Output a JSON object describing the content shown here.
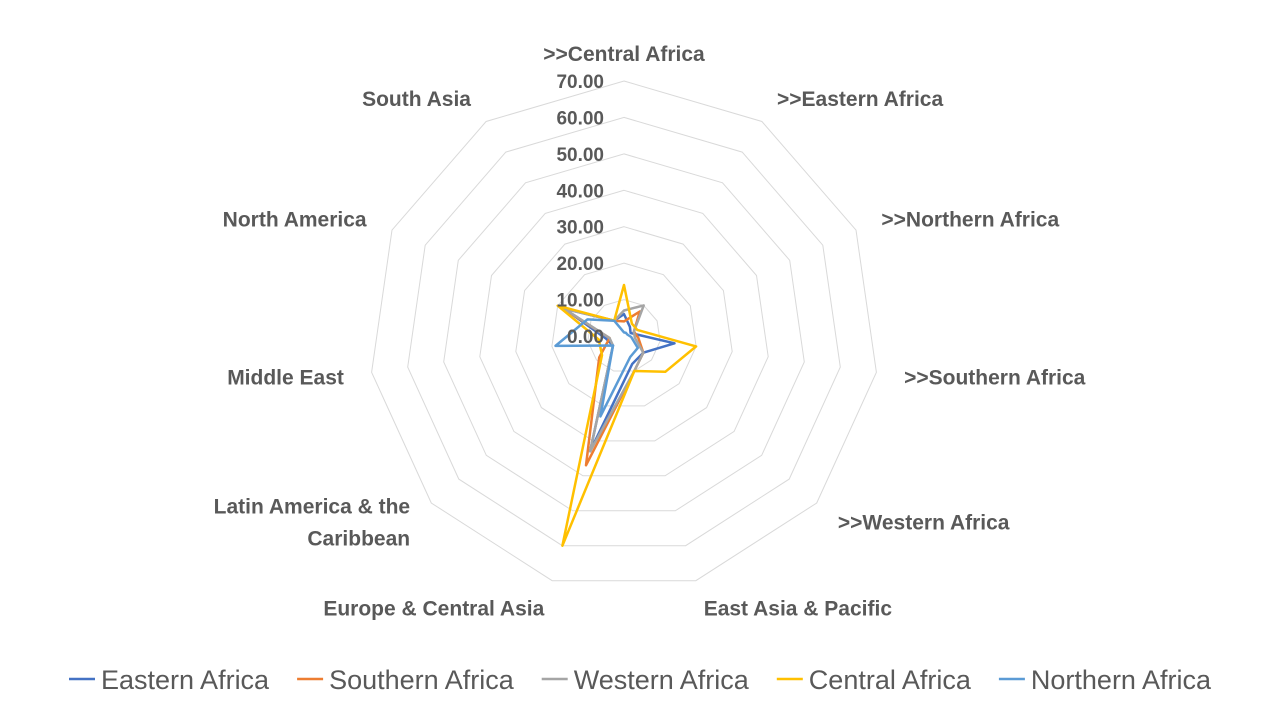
{
  "chart_data": {
    "type": "radar",
    "categories": [
      ">>Central Africa",
      ">>Eastern Africa",
      ">>Northern Africa",
      ">>Southern Africa",
      ">>Western  Africa",
      "East Asia & Pacific",
      "Europe & Central Asia",
      "Latin America & the Caribbean",
      "Middle East",
      "North America",
      "South Asia"
    ],
    "category_lines": [
      [
        ">>Central Africa"
      ],
      [
        ">>Eastern Africa"
      ],
      [
        ">>Northern Africa"
      ],
      [
        ">>Southern Africa"
      ],
      [
        ">>Western  Africa"
      ],
      [
        "East Asia & Pacific"
      ],
      [
        "Europe & Central Asia"
      ],
      [
        "Latin America & the",
        "Caribbean"
      ],
      [
        "Middle East"
      ],
      [
        "North America"
      ],
      [
        "South Asia"
      ]
    ],
    "rlim": [
      0,
      70
    ],
    "ticks": [
      "0.00",
      "10.00",
      "20.00",
      "30.00",
      "40.00",
      "50.00",
      "60.00",
      "70.00"
    ],
    "series": [
      {
        "name": "Eastern Africa",
        "color": "#4472C4",
        "values": [
          6,
          3,
          2,
          14,
          7,
          8,
          33,
          4,
          5,
          18,
          5
        ]
      },
      {
        "name": "Southern Africa",
        "color": "#ED7D31",
        "values": [
          4,
          8,
          3,
          4,
          7,
          10,
          37,
          9,
          4,
          19,
          5
        ]
      },
      {
        "name": "Western  Africa",
        "color": "#A5A5A5",
        "values": [
          7,
          10,
          3,
          3,
          7,
          10,
          33,
          4,
          4,
          18,
          5
        ]
      },
      {
        "name": "Central Africa",
        "color": "#FFC000",
        "values": [
          14,
          4,
          4,
          20,
          15,
          10,
          60,
          8,
          7,
          20,
          5
        ]
      },
      {
        "name": "Northern Africa",
        "color": "#5B9BD5",
        "values": [
          1,
          1,
          1,
          2,
          5,
          6,
          23,
          4,
          19,
          11,
          5
        ]
      }
    ],
    "grid": true,
    "legend_position": "bottom"
  }
}
